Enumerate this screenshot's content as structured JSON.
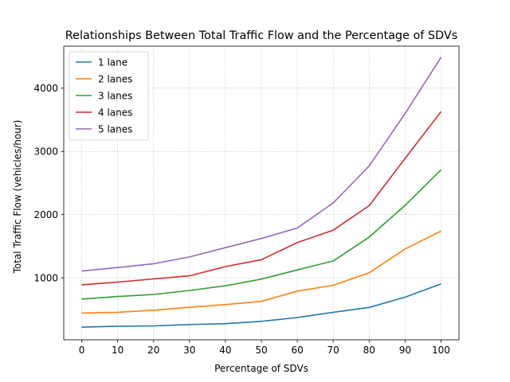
{
  "chart_data": {
    "type": "line",
    "title": "Relationships Between Total Traffic Flow and the Percentage of SDVs",
    "xlabel": "Percentage of SDVs",
    "ylabel": "Total Traffic Flow (vehicles/hour)",
    "x": [
      0,
      10,
      20,
      30,
      40,
      50,
      60,
      70,
      80,
      90,
      100
    ],
    "xticks": [
      "0",
      "10",
      "20",
      "30",
      "40",
      "50",
      "60",
      "70",
      "80",
      "90",
      "100"
    ],
    "yticks": [
      "1000",
      "2000",
      "3000",
      "4000"
    ],
    "xlim": [
      -5,
      105
    ],
    "ylim": [
      20,
      4665
    ],
    "grid": true,
    "legend_position": "upper-left",
    "series": [
      {
        "name": "1 lane",
        "color": "#1f77b4",
        "values": [
          220,
          235,
          240,
          262,
          275,
          312,
          372,
          455,
          532,
          695,
          905
        ]
      },
      {
        "name": "2 lanes",
        "color": "#ff7f0e",
        "values": [
          443,
          455,
          488,
          535,
          578,
          628,
          790,
          882,
          1080,
          1458,
          1740
        ]
      },
      {
        "name": "3 lanes",
        "color": "#2ca02c",
        "values": [
          665,
          705,
          738,
          800,
          875,
          980,
          1125,
          1268,
          1645,
          2148,
          2710
        ]
      },
      {
        "name": "4 lanes",
        "color": "#d62728",
        "values": [
          890,
          933,
          983,
          1032,
          1178,
          1287,
          1558,
          1755,
          2142,
          2890,
          3630
        ]
      },
      {
        "name": "5 lanes",
        "color": "#9467bd",
        "values": [
          1108,
          1163,
          1224,
          1330,
          1478,
          1622,
          1788,
          2186,
          2772,
          3600,
          4490
        ]
      }
    ]
  }
}
